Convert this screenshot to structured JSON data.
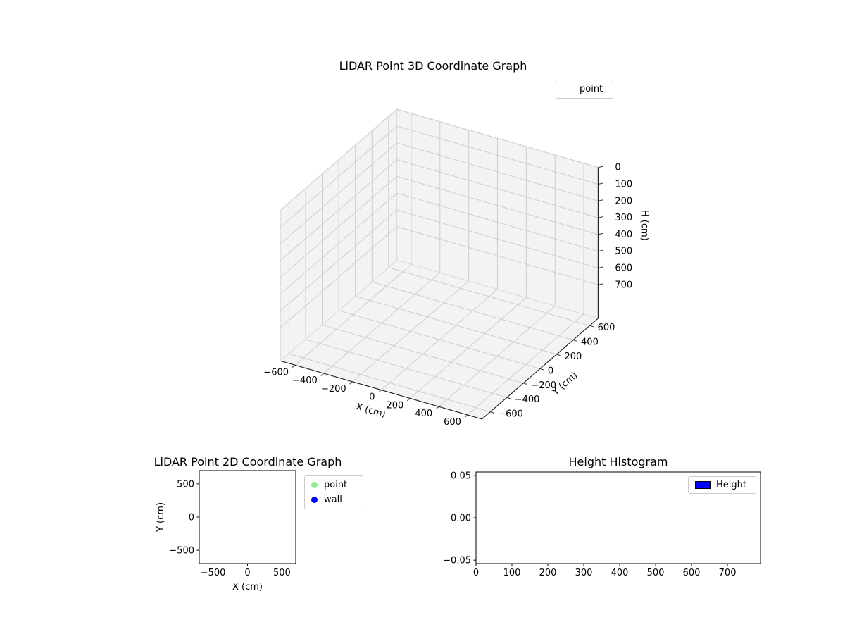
{
  "background": "#ffffff",
  "chart_data": [
    {
      "name": "lidar-3d",
      "type": "scatter3d",
      "title": "LiDAR Point 3D Coordinate Graph",
      "xlabel": "X (cm)",
      "ylabel": "Y (cm)",
      "hlabel": "H (cm)",
      "xlim": [
        -700,
        700
      ],
      "ylim": [
        -700,
        700
      ],
      "hlim": [
        0,
        900
      ],
      "h_axis_inverted": true,
      "grid": true,
      "xtick_vals": [
        -600,
        -400,
        -200,
        0,
        200,
        400,
        600
      ],
      "xtick_labels": [
        "−600",
        "−400",
        "−200",
        "0",
        "200",
        "400",
        "600"
      ],
      "ytick_vals": [
        -600,
        -400,
        -200,
        0,
        200,
        400,
        600
      ],
      "ytick_labels": [
        "−600",
        "−400",
        "−200",
        "0",
        "200",
        "400",
        "600"
      ],
      "htick_vals": [
        0,
        100,
        200,
        300,
        400,
        500,
        600,
        700
      ],
      "htick_labels": [
        "0",
        "100",
        "200",
        "300",
        "400",
        "500",
        "600",
        "700"
      ],
      "legend": {
        "position": "upper right",
        "entries": [
          {
            "label": "point"
          }
        ]
      },
      "points": [],
      "pane_color": "#e9e9e9",
      "pane_edge_color": "#dcdcdc",
      "grid_color": "#cdcdcd"
    },
    {
      "name": "lidar-2d",
      "type": "scatter",
      "title": "LiDAR Point 2D Coordinate Graph",
      "xlabel": "X (cm)",
      "ylabel": "Y (cm)",
      "xlim": [
        -700,
        700
      ],
      "ylim": [
        -700,
        700
      ],
      "grid": false,
      "xtick_vals": [
        -500,
        0,
        500
      ],
      "xtick_labels": [
        "−500",
        "0",
        "500"
      ],
      "ytick_vals": [
        -500,
        0,
        500
      ],
      "ytick_labels": [
        "−500",
        "0",
        "500"
      ],
      "legend": {
        "position": "outside right",
        "entries": [
          {
            "label": "point",
            "color": "#90ee90",
            "marker": "circle"
          },
          {
            "label": "wall",
            "color": "#0000ff",
            "marker": "circle"
          }
        ]
      },
      "points": []
    },
    {
      "name": "height-histogram",
      "type": "bar",
      "title": "Height Histogram",
      "xlabel": "",
      "ylabel": "",
      "xlim": [
        0,
        792
      ],
      "ylim": [
        -0.054,
        0.054
      ],
      "grid": false,
      "xtick_vals": [
        0,
        100,
        200,
        300,
        400,
        500,
        600,
        700
      ],
      "xtick_labels": [
        "0",
        "100",
        "200",
        "300",
        "400",
        "500",
        "600",
        "700"
      ],
      "ytick_vals": [
        -0.05,
        0,
        0.05
      ],
      "ytick_labels": [
        "−0.05",
        "0.00",
        "0.05"
      ],
      "legend": {
        "position": "upper right",
        "entries": [
          {
            "label": "Height",
            "color": "#0000ff",
            "marker": "rect"
          }
        ]
      },
      "values": []
    }
  ]
}
